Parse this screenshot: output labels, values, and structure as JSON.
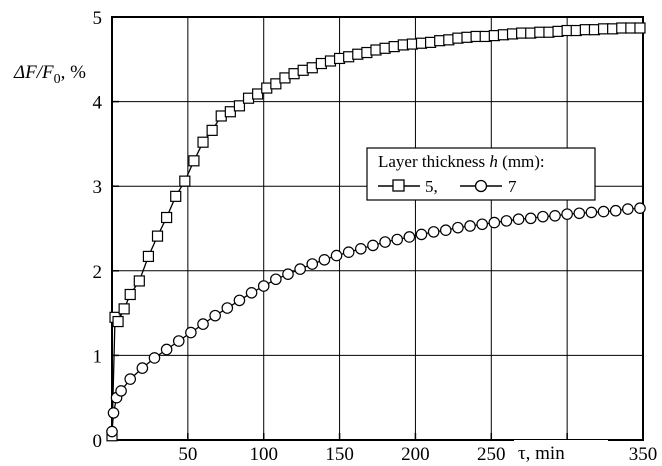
{
  "chart_data": {
    "type": "line",
    "xlabel": "τ, min",
    "ylabel": {
      "prefix": "ΔF/F",
      "subscript": "0",
      "suffix": ", %"
    },
    "xlim": [
      0,
      350
    ],
    "ylim": [
      0,
      5
    ],
    "x_ticks": [
      0,
      50,
      100,
      150,
      200,
      250,
      300,
      350
    ],
    "x_tick_labels": [
      "50",
      "100",
      "150",
      "200",
      "250",
      "300",
      "350"
    ],
    "y_ticks": [
      0,
      1,
      2,
      3,
      4,
      5
    ],
    "y_tick_labels": [
      "0",
      "1",
      "2",
      "3",
      "4",
      "5"
    ],
    "grid": true,
    "legend": {
      "placement": "right-middle",
      "title_prefix": "Layer thickness ",
      "title_var": "h",
      "title_suffix": " (mm):",
      "entries": [
        "5,",
        "7"
      ]
    },
    "series": [
      {
        "name": "5",
        "marker": "square",
        "x": [
          0,
          2,
          4,
          8,
          12,
          18,
          24,
          30,
          36,
          42,
          48,
          54,
          60,
          66,
          72,
          78,
          84,
          90,
          96,
          102,
          108,
          114,
          120,
          126,
          132,
          138,
          144,
          150,
          156,
          162,
          168,
          174,
          180,
          186,
          192,
          198,
          204,
          210,
          216,
          222,
          228,
          234,
          240,
          246,
          252,
          258,
          264,
          270,
          276,
          282,
          288,
          294,
          300,
          306,
          312,
          318,
          324,
          330,
          336,
          342,
          348
        ],
        "y": [
          0.05,
          1.45,
          1.4,
          1.55,
          1.72,
          1.88,
          2.17,
          2.41,
          2.63,
          2.88,
          3.06,
          3.3,
          3.52,
          3.66,
          3.83,
          3.88,
          3.95,
          4.04,
          4.09,
          4.16,
          4.21,
          4.28,
          4.33,
          4.37,
          4.4,
          4.45,
          4.48,
          4.51,
          4.53,
          4.56,
          4.58,
          4.61,
          4.63,
          4.65,
          4.67,
          4.68,
          4.69,
          4.7,
          4.72,
          4.73,
          4.75,
          4.76,
          4.77,
          4.77,
          4.78,
          4.79,
          4.8,
          4.81,
          4.81,
          4.82,
          4.82,
          4.83,
          4.84,
          4.84,
          4.85,
          4.85,
          4.86,
          4.86,
          4.87,
          4.87,
          4.87
        ]
      },
      {
        "name": "7",
        "marker": "circle",
        "x": [
          0,
          1,
          3,
          6,
          12,
          20,
          28,
          36,
          44,
          52,
          60,
          68,
          76,
          84,
          92,
          100,
          108,
          116,
          124,
          132,
          140,
          148,
          156,
          164,
          172,
          180,
          188,
          196,
          204,
          212,
          220,
          228,
          236,
          244,
          252,
          260,
          268,
          276,
          284,
          292,
          300,
          308,
          316,
          324,
          332,
          340,
          348
        ],
        "y": [
          0.1,
          0.32,
          0.5,
          0.58,
          0.72,
          0.85,
          0.97,
          1.07,
          1.17,
          1.27,
          1.37,
          1.47,
          1.56,
          1.65,
          1.74,
          1.82,
          1.9,
          1.96,
          2.02,
          2.08,
          2.13,
          2.18,
          2.22,
          2.26,
          2.3,
          2.34,
          2.37,
          2.4,
          2.43,
          2.46,
          2.48,
          2.51,
          2.53,
          2.55,
          2.57,
          2.59,
          2.61,
          2.62,
          2.64,
          2.65,
          2.67,
          2.68,
          2.69,
          2.7,
          2.71,
          2.73,
          2.74
        ]
      }
    ]
  }
}
